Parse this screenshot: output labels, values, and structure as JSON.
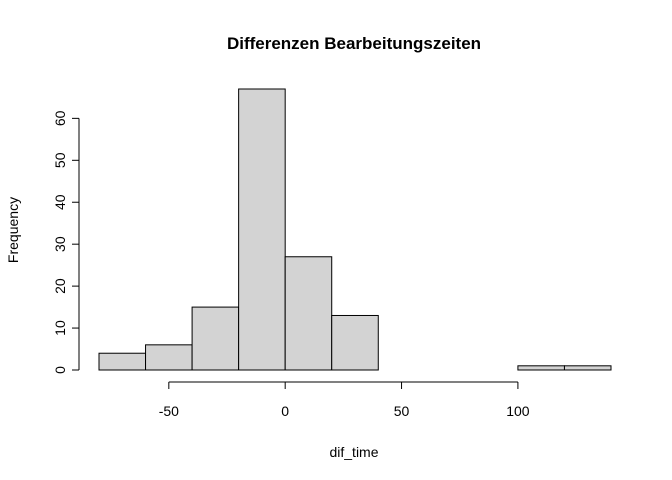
{
  "chart_data": {
    "type": "bar",
    "title": "Differenzen Bearbeitungszeiten",
    "xlabel": "dif_time",
    "ylabel": "Frequency",
    "bins": [
      {
        "x0": -80,
        "x1": -60,
        "count": 4
      },
      {
        "x0": -60,
        "x1": -40,
        "count": 6
      },
      {
        "x0": -40,
        "x1": -20,
        "count": 15
      },
      {
        "x0": -20,
        "x1": 0,
        "count": 67
      },
      {
        "x0": 0,
        "x1": 20,
        "count": 27
      },
      {
        "x0": 20,
        "x1": 40,
        "count": 13
      },
      {
        "x0": 40,
        "x1": 60,
        "count": 0
      },
      {
        "x0": 60,
        "x1": 80,
        "count": 0
      },
      {
        "x0": 80,
        "x1": 100,
        "count": 0
      },
      {
        "x0": 100,
        "x1": 120,
        "count": 1
      },
      {
        "x0": 120,
        "x1": 140,
        "count": 1
      }
    ],
    "xticks": [
      -50,
      0,
      50,
      100
    ],
    "yticks": [
      0,
      10,
      20,
      30,
      40,
      50,
      60
    ],
    "xlim": [
      -80,
      140
    ],
    "ylim": [
      0,
      67
    ],
    "bar_color": "#d3d3d3",
    "edge_color": "#000000",
    "grid": false,
    "legend": "none"
  }
}
